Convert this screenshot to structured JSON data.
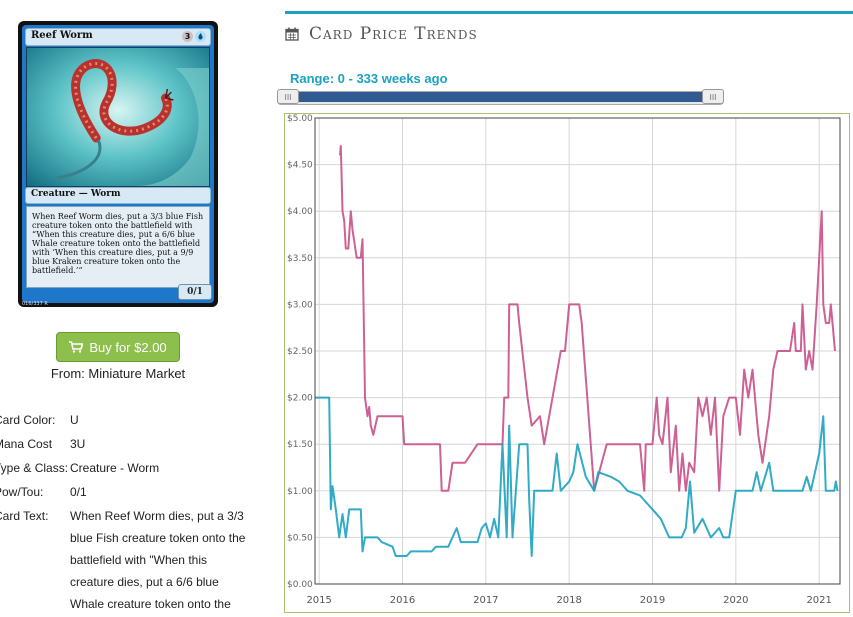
{
  "card": {
    "name": "Reef Worm",
    "cost_generic": "3",
    "cost_colored": "U",
    "type_line": "Creature — Worm",
    "rules_text": "When Reef Worm dies, put a 3/3 blue Fish creature token onto the battlefield with “When this creature dies, put a 6/6 blue Whale creature token onto the battlefield with ‘When this creature dies, put a 9/9 blue Kraken creature token onto the battlefield.’”",
    "power_toughness": "0/1",
    "collector_number": "016/337 R"
  },
  "buy": {
    "label": "Buy for $2.00",
    "from": "From: Miniature Market"
  },
  "details": {
    "color_label": "Card Color:",
    "color_value": "U",
    "mana_label": "Mana Cost",
    "mana_value": "3U",
    "type_label": "Type & Class:",
    "type_value": "Creature - Worm",
    "pt_label": "Pow/Tou:",
    "pt_value": "0/1",
    "text_label": "Card Text:",
    "text_value": "When Reef Worm dies, put a 3/3 blue Fish creature token onto the battlefield with \"When this creature dies, put a 6/6 blue Whale creature token onto the"
  },
  "panel": {
    "title": "Card Price Trends",
    "range_label": "Range: 0 - 333 weeks ago",
    "slider_left_grip": "III",
    "slider_right_grip": "III",
    "accent": "#1ba2c0"
  },
  "chart_data": {
    "type": "line",
    "ylim": [
      0,
      5
    ],
    "xlim": [
      2014.95,
      2021.25
    ],
    "y_ticks": [
      "$0.00",
      "$0.50",
      "$1.00",
      "$1.50",
      "$2.00",
      "$2.50",
      "$3.00",
      "$3.50",
      "$4.00",
      "$4.50",
      "$5.00"
    ],
    "x_ticks": [
      "2015",
      "2016",
      "2017",
      "2018",
      "2019",
      "2020",
      "2021"
    ],
    "grid": true,
    "series": [
      {
        "color": "#c95088",
        "points": [
          [
            2015.25,
            4.6
          ],
          [
            2015.26,
            4.7
          ],
          [
            2015.28,
            4.0
          ],
          [
            2015.3,
            3.9
          ],
          [
            2015.32,
            3.6
          ],
          [
            2015.35,
            3.6
          ],
          [
            2015.38,
            4.0
          ],
          [
            2015.4,
            3.8
          ],
          [
            2015.45,
            3.5
          ],
          [
            2015.5,
            3.5
          ],
          [
            2015.52,
            3.7
          ],
          [
            2015.55,
            2.0
          ],
          [
            2015.58,
            1.8
          ],
          [
            2015.6,
            1.9
          ],
          [
            2015.62,
            1.7
          ],
          [
            2015.65,
            1.6
          ],
          [
            2015.7,
            1.8
          ],
          [
            2015.75,
            1.8
          ],
          [
            2016.0,
            1.8
          ],
          [
            2016.02,
            1.5
          ],
          [
            2016.25,
            1.5
          ],
          [
            2016.45,
            1.5
          ],
          [
            2016.47,
            1.0
          ],
          [
            2016.55,
            1.0
          ],
          [
            2016.6,
            1.3
          ],
          [
            2016.75,
            1.3
          ],
          [
            2016.9,
            1.5
          ],
          [
            2017.2,
            1.5
          ],
          [
            2017.22,
            2.0
          ],
          [
            2017.27,
            2.0
          ],
          [
            2017.28,
            3.0
          ],
          [
            2017.38,
            3.0
          ],
          [
            2017.4,
            2.8
          ],
          [
            2017.5,
            2.0
          ],
          [
            2017.55,
            1.7
          ],
          [
            2017.65,
            1.8
          ],
          [
            2017.7,
            1.5
          ],
          [
            2017.9,
            2.5
          ],
          [
            2017.95,
            2.5
          ],
          [
            2018.0,
            3.0
          ],
          [
            2018.12,
            3.0
          ],
          [
            2018.15,
            2.8
          ],
          [
            2018.3,
            1.0
          ],
          [
            2018.45,
            1.5
          ],
          [
            2018.85,
            1.5
          ],
          [
            2018.9,
            1.0
          ],
          [
            2018.92,
            1.5
          ],
          [
            2019.0,
            1.5
          ],
          [
            2019.05,
            2.0
          ],
          [
            2019.08,
            1.6
          ],
          [
            2019.12,
            1.5
          ],
          [
            2019.18,
            2.0
          ],
          [
            2019.22,
            1.2
          ],
          [
            2019.28,
            1.7
          ],
          [
            2019.32,
            1.0
          ],
          [
            2019.36,
            1.4
          ],
          [
            2019.4,
            1.0
          ],
          [
            2019.44,
            1.3
          ],
          [
            2019.5,
            1.2
          ],
          [
            2019.55,
            2.0
          ],
          [
            2019.6,
            1.8
          ],
          [
            2019.65,
            2.0
          ],
          [
            2019.7,
            1.6
          ],
          [
            2019.75,
            2.0
          ],
          [
            2019.8,
            1.0
          ],
          [
            2019.85,
            1.8
          ],
          [
            2019.92,
            2.0
          ],
          [
            2020.0,
            2.0
          ],
          [
            2020.05,
            1.6
          ],
          [
            2020.1,
            2.3
          ],
          [
            2020.15,
            2.0
          ],
          [
            2020.2,
            2.3
          ],
          [
            2020.27,
            1.6
          ],
          [
            2020.32,
            1.3
          ],
          [
            2020.4,
            1.8
          ],
          [
            2020.45,
            2.3
          ],
          [
            2020.5,
            2.5
          ],
          [
            2020.65,
            2.5
          ],
          [
            2020.7,
            2.8
          ],
          [
            2020.72,
            2.5
          ],
          [
            2020.78,
            2.5
          ],
          [
            2020.8,
            3.0
          ],
          [
            2020.84,
            2.3
          ],
          [
            2020.88,
            2.5
          ],
          [
            2020.92,
            2.3
          ],
          [
            2020.97,
            3.0
          ],
          [
            2021.03,
            4.0
          ],
          [
            2021.05,
            3.0
          ],
          [
            2021.08,
            2.8
          ],
          [
            2021.12,
            2.8
          ],
          [
            2021.14,
            3.0
          ],
          [
            2021.16,
            2.8
          ],
          [
            2021.19,
            2.5
          ]
        ]
      },
      {
        "color": "#1ba2c0",
        "points": [
          [
            2014.95,
            2.0
          ],
          [
            2015.12,
            2.0
          ],
          [
            2015.14,
            0.8
          ],
          [
            2015.16,
            1.05
          ],
          [
            2015.2,
            0.8
          ],
          [
            2015.24,
            0.5
          ],
          [
            2015.28,
            0.75
          ],
          [
            2015.32,
            0.5
          ],
          [
            2015.36,
            0.8
          ],
          [
            2015.5,
            0.8
          ],
          [
            2015.52,
            0.35
          ],
          [
            2015.55,
            0.5
          ],
          [
            2015.7,
            0.5
          ],
          [
            2015.75,
            0.45
          ],
          [
            2015.88,
            0.4
          ],
          [
            2015.92,
            0.3
          ],
          [
            2016.05,
            0.3
          ],
          [
            2016.1,
            0.35
          ],
          [
            2016.35,
            0.35
          ],
          [
            2016.4,
            0.4
          ],
          [
            2016.55,
            0.4
          ],
          [
            2016.6,
            0.5
          ],
          [
            2016.65,
            0.6
          ],
          [
            2016.7,
            0.45
          ],
          [
            2016.9,
            0.45
          ],
          [
            2016.95,
            0.6
          ],
          [
            2017.0,
            0.65
          ],
          [
            2017.05,
            0.5
          ],
          [
            2017.1,
            0.7
          ],
          [
            2017.15,
            0.5
          ],
          [
            2017.2,
            1.5
          ],
          [
            2017.25,
            0.5
          ],
          [
            2017.28,
            1.7
          ],
          [
            2017.32,
            0.5
          ],
          [
            2017.4,
            1.5
          ],
          [
            2017.5,
            1.5
          ],
          [
            2017.52,
            0.9
          ],
          [
            2017.55,
            0.3
          ],
          [
            2017.58,
            1.0
          ],
          [
            2017.8,
            1.0
          ],
          [
            2017.85,
            1.4
          ],
          [
            2017.9,
            1.0
          ],
          [
            2018.0,
            1.1
          ],
          [
            2018.05,
            1.2
          ],
          [
            2018.1,
            1.5
          ],
          [
            2018.2,
            1.15
          ],
          [
            2018.3,
            1.0
          ],
          [
            2018.35,
            1.2
          ],
          [
            2018.5,
            1.15
          ],
          [
            2018.6,
            1.1
          ],
          [
            2018.7,
            1.0
          ],
          [
            2018.85,
            0.95
          ],
          [
            2019.0,
            0.8
          ],
          [
            2019.1,
            0.7
          ],
          [
            2019.15,
            0.6
          ],
          [
            2019.2,
            0.5
          ],
          [
            2019.35,
            0.5
          ],
          [
            2019.4,
            0.6
          ],
          [
            2019.45,
            1.1
          ],
          [
            2019.5,
            0.55
          ],
          [
            2019.6,
            0.7
          ],
          [
            2019.7,
            0.5
          ],
          [
            2019.8,
            0.6
          ],
          [
            2019.85,
            0.5
          ],
          [
            2019.92,
            0.5
          ],
          [
            2020.0,
            1.0
          ],
          [
            2020.2,
            1.0
          ],
          [
            2020.25,
            1.2
          ],
          [
            2020.3,
            1.0
          ],
          [
            2020.4,
            1.3
          ],
          [
            2020.45,
            1.0
          ],
          [
            2020.8,
            1.0
          ],
          [
            2020.85,
            1.15
          ],
          [
            2020.9,
            1.0
          ],
          [
            2021.0,
            1.4
          ],
          [
            2021.05,
            1.8
          ],
          [
            2021.08,
            1.0
          ],
          [
            2021.18,
            1.0
          ],
          [
            2021.2,
            1.1
          ],
          [
            2021.22,
            1.0
          ]
        ]
      }
    ]
  }
}
